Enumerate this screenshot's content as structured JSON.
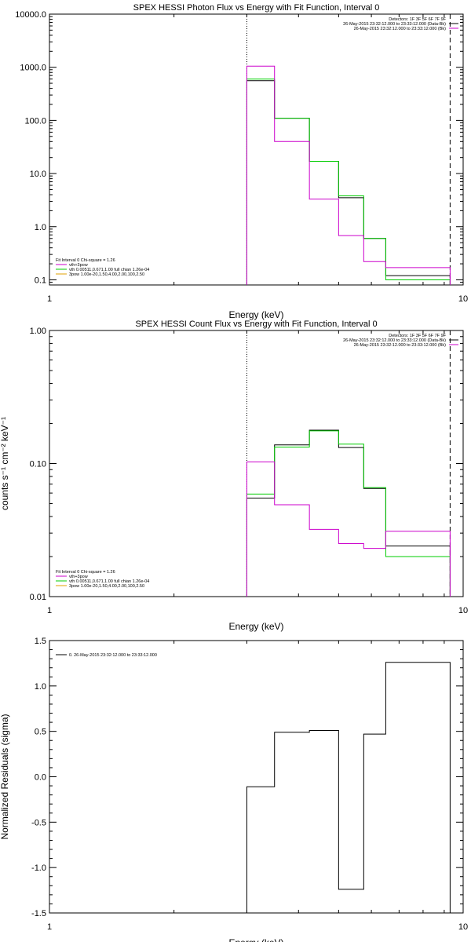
{
  "chart_data": [
    {
      "type": "line",
      "step": true,
      "title": "SPEX HESSI Photon Flux vs Energy with Fit Function, Interval 0",
      "xlabel": "Energy (keV)",
      "ylabel": "",
      "x_scale": "log",
      "y_scale": "log",
      "xlim": [
        1,
        10
      ],
      "ylim": [
        0.08,
        10000
      ],
      "x_tick_labels": [
        {
          "v": 1,
          "label": "1"
        },
        {
          "v": 10,
          "label": "10"
        }
      ],
      "y_tick_labels": [
        {
          "v": 0.1,
          "label": "0.1"
        },
        {
          "v": 1,
          "label": "1.0"
        },
        {
          "v": 10,
          "label": "10.0"
        },
        {
          "v": 100,
          "label": "100.0"
        },
        {
          "v": 1000,
          "label": "1000.0"
        },
        {
          "v": 10000,
          "label": "10000.0"
        }
      ],
      "edges": [
        3.0,
        3.5,
        4.0,
        4.5,
        5.0,
        5.5,
        6.0,
        6.5
      ],
      "bins": [
        [
          3.0,
          3.5
        ],
        [
          3.5,
          4.25
        ],
        [
          4.25,
          5.0
        ],
        [
          5.0,
          5.75
        ],
        [
          5.75,
          6.5
        ],
        [
          6.5,
          7.4
        ],
        [
          7.4,
          8.5
        ],
        [
          8.5,
          9.3
        ]
      ],
      "series": [
        {
          "color": "#000000",
          "values": [
            560,
            110,
            17,
            3.5,
            0.6,
            0.12,
            0.12,
            0.12
          ]
        },
        {
          "color": "#00cc00",
          "values": [
            600,
            110,
            17,
            3.8,
            0.6,
            0.1,
            0.1,
            0.1
          ]
        },
        {
          "color": "#cc00cc",
          "values": [
            1050,
            40,
            3.3,
            0.68,
            0.22,
            0.17,
            0.17,
            0.17
          ]
        }
      ],
      "vlines": [
        {
          "x": 3.0,
          "style": "dotted"
        },
        {
          "x": 9.3,
          "style": "dashed"
        }
      ],
      "info_lines": [
        "Detectors: 1F 3F 5F 6F 7F 9F",
        "26-May-2015 23:32:12.000 to 23:33:12.000 (Data-Bk)",
        "26-May-2015 23:32:12.000 to 23:33:12.000 (Bk)"
      ],
      "info_colors": [
        "",
        "#000000",
        "#cc00cc"
      ],
      "legend_lines": [
        "Fit Interval 0   Chi-square = 1.26",
        "vth+3pow",
        "vth 0.00511,0.671,1.00  full chian 1.26e-04",
        "3pow 1.00e-20,1.50,4.00,2.00,100,2.50"
      ],
      "legend_colors": [
        "",
        "#cc00cc",
        "#00cc00",
        "#e0a000"
      ]
    },
    {
      "type": "line",
      "step": true,
      "title": "SPEX HESSI Count Flux vs Energy with Fit Function, Interval 0",
      "xlabel": "Energy (keV)",
      "ylabel": "counts s⁻¹ cm⁻² keV⁻¹",
      "x_scale": "log",
      "y_scale": "log",
      "xlim": [
        1,
        10
      ],
      "ylim": [
        0.01,
        1.0
      ],
      "x_tick_labels": [
        {
          "v": 1,
          "label": "1"
        },
        {
          "v": 10,
          "label": "10"
        }
      ],
      "y_tick_labels": [
        {
          "v": 0.01,
          "label": "0.01"
        },
        {
          "v": 0.1,
          "label": "0.10"
        },
        {
          "v": 1.0,
          "label": "1.00"
        }
      ],
      "bins": [
        [
          3.0,
          3.5
        ],
        [
          3.5,
          4.25
        ],
        [
          4.25,
          5.0
        ],
        [
          5.0,
          5.75
        ],
        [
          5.75,
          6.5
        ],
        [
          6.5,
          7.4
        ],
        [
          7.4,
          8.5
        ],
        [
          8.5,
          9.3
        ]
      ],
      "series": [
        {
          "color": "#000000",
          "values": [
            0.055,
            0.138,
            0.178,
            0.132,
            0.065,
            0.024,
            0.024,
            0.024
          ]
        },
        {
          "color": "#00cc00",
          "values": [
            0.059,
            0.133,
            0.176,
            0.14,
            0.066,
            0.02,
            0.02,
            0.02
          ]
        },
        {
          "color": "#cc00cc",
          "values": [
            0.103,
            0.049,
            0.032,
            0.025,
            0.023,
            0.031,
            0.031,
            0.031
          ]
        }
      ],
      "vlines": [
        {
          "x": 3.0,
          "style": "dotted"
        },
        {
          "x": 9.3,
          "style": "dashed"
        }
      ],
      "info_lines": [
        "Detectors: 1F 3F 5F 6F 7F 9F",
        "26-May-2015 23:32:12.000 to 23:33:12.000 (Data-Bk)",
        "26-May-2015 23:32:12.000 to 23:33:12.000 (Bk)"
      ],
      "info_colors": [
        "",
        "#000000",
        "#cc00cc"
      ],
      "legend_lines": [
        "Fit Interval 0   Chi-square = 1.26",
        "vth+3pow",
        "vth 0.00511,0.671,1.00  full chian 1.26e-04",
        "3pow 1.00e-20,1.50,4.00,2.00,100,2.50"
      ],
      "legend_colors": [
        "",
        "#cc00cc",
        "#00cc00",
        "#e0a000"
      ]
    },
    {
      "type": "line",
      "step": true,
      "title": "",
      "xlabel": "Energy (keV)",
      "ylabel": "Normalized Residuals (sigma)",
      "x_scale": "log",
      "y_scale": "linear",
      "xlim": [
        1,
        10
      ],
      "ylim": [
        -1.5,
        1.5
      ],
      "x_tick_labels": [
        {
          "v": 1,
          "label": "1"
        },
        {
          "v": 10,
          "label": "10"
        }
      ],
      "y_tick_labels": [
        {
          "v": -1.5,
          "label": "-1.5"
        },
        {
          "v": -1.0,
          "label": "-1.0"
        },
        {
          "v": -0.5,
          "label": "-0.5"
        },
        {
          "v": 0.0,
          "label": "0.0"
        },
        {
          "v": 0.5,
          "label": "0.5"
        },
        {
          "v": 1.0,
          "label": "1.0"
        },
        {
          "v": 1.5,
          "label": "1.5"
        }
      ],
      "bins": [
        [
          3.0,
          3.5
        ],
        [
          3.5,
          4.25
        ],
        [
          4.25,
          5.0
        ],
        [
          5.0,
          5.75
        ],
        [
          5.75,
          6.5
        ],
        [
          6.5,
          7.4
        ],
        [
          7.4,
          8.5
        ],
        [
          8.5,
          9.3
        ]
      ],
      "series": [
        {
          "color": "#000000",
          "values": [
            -0.11,
            0.49,
            0.51,
            -1.24,
            0.47,
            1.26,
            1.26,
            1.26
          ]
        }
      ],
      "legend_lines": [
        "0. 26-May-2015 23:32:12.000 to 23:33:12.000"
      ],
      "legend_colors": [
        "#000000"
      ]
    }
  ]
}
